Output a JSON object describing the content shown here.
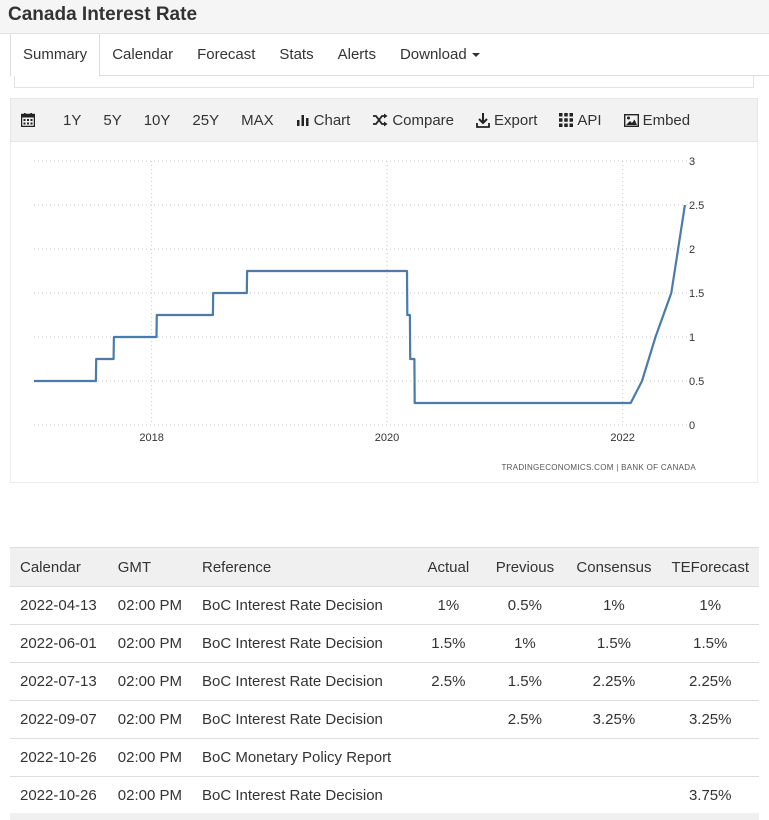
{
  "page": {
    "title": "Canada Interest Rate"
  },
  "tabs": [
    {
      "label": "Summary",
      "active": true
    },
    {
      "label": "Calendar"
    },
    {
      "label": "Forecast"
    },
    {
      "label": "Stats"
    },
    {
      "label": "Alerts"
    },
    {
      "label": "Download"
    }
  ],
  "toolbar": {
    "calendar_icon": "calendar-icon",
    "range_1y": "1Y",
    "range_5y": "5Y",
    "range_10y": "10Y",
    "range_25y": "25Y",
    "range_max": "MAX",
    "chart": "Chart",
    "compare": "Compare",
    "export": "Export",
    "api": "API",
    "embed": "Embed"
  },
  "chart_data": {
    "type": "line",
    "source": "TRADINGECONOMICS.COM | BANK OF CANADA",
    "line_color": "#4a7bab",
    "grid": true,
    "ylim": [
      0,
      3
    ],
    "y_ticks": [
      "0",
      "0.5",
      "1",
      "1.5",
      "2",
      "2.5",
      "3"
    ],
    "x_ticks": [
      "2018",
      "2020",
      "2022"
    ],
    "series": [
      {
        "x": [
          "2017-01",
          "2017-07-12",
          "2017-07-13",
          "2017-09-05",
          "2017-09-06",
          "2018-01-16",
          "2018-01-17",
          "2018-07-10",
          "2018-07-11",
          "2018-10-23",
          "2018-10-24",
          "2020-03-03",
          "2020-03-04",
          "2020-03-12",
          "2020-03-13",
          "2020-03-26",
          "2020-03-27",
          "2022-01-26",
          "2022-03-02",
          "2022-04-13",
          "2022-06-01",
          "2022-07-13"
        ],
        "y": [
          0.5,
          0.5,
          0.75,
          0.75,
          1.0,
          1.0,
          1.25,
          1.25,
          1.5,
          1.5,
          1.75,
          1.75,
          1.25,
          1.25,
          0.75,
          0.75,
          0.25,
          0.25,
          0.5,
          1.0,
          1.5,
          2.5
        ]
      }
    ]
  },
  "table": {
    "headers": [
      "Calendar",
      "GMT",
      "Reference",
      "Actual",
      "Previous",
      "Consensus",
      "TEForecast"
    ],
    "rows": [
      [
        "2022-04-13",
        "02:00 PM",
        "BoC Interest Rate Decision",
        "1%",
        "0.5%",
        "1%",
        "1%"
      ],
      [
        "2022-06-01",
        "02:00 PM",
        "BoC Interest Rate Decision",
        "1.5%",
        "1%",
        "1.5%",
        "1.5%"
      ],
      [
        "2022-07-13",
        "02:00 PM",
        "BoC Interest Rate Decision",
        "2.5%",
        "1.5%",
        "2.25%",
        "2.25%"
      ],
      [
        "2022-09-07",
        "02:00 PM",
        "BoC Interest Rate Decision",
        "",
        "2.5%",
        "3.25%",
        "3.25%"
      ],
      [
        "2022-10-26",
        "02:00 PM",
        "BoC Monetary Policy Report",
        "",
        "",
        "",
        ""
      ],
      [
        "2022-10-26",
        "02:00 PM",
        "BoC Interest Rate Decision",
        "",
        "",
        "",
        "3.75%"
      ]
    ]
  }
}
